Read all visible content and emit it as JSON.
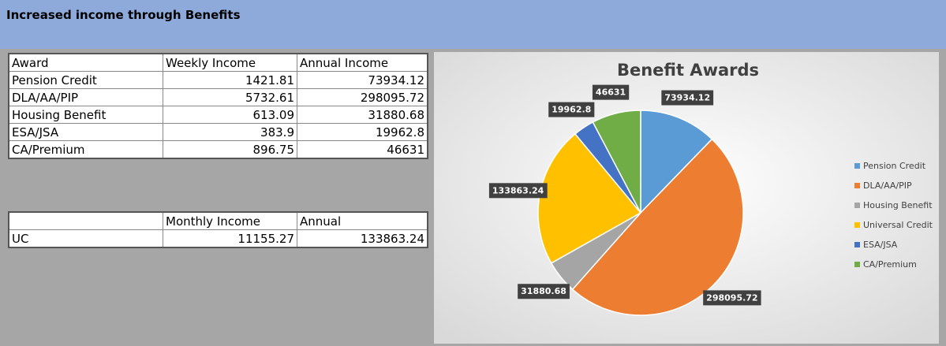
{
  "header": {
    "title": "Increased income through Benefits"
  },
  "table1": {
    "headers": [
      "Award",
      "Weekly Income",
      "Annual Income"
    ],
    "rows": [
      [
        "Pension Credit",
        1421.81,
        73934.12
      ],
      [
        "DLA/AA/PIP",
        5732.61,
        298095.72
      ],
      [
        "Housing Benefit",
        613.09,
        31880.68
      ],
      [
        "ESA/JSA",
        383.9,
        19962.8
      ],
      [
        "CA/Premium",
        896.75,
        46631
      ]
    ]
  },
  "table2": {
    "headers": [
      "",
      "Monthly Income",
      "Annual"
    ],
    "rows": [
      [
        "UC",
        11155.27,
        133863.24
      ]
    ]
  },
  "chart_data": {
    "type": "pie",
    "title": "Benefit Awards",
    "categories": [
      "Pension Credit",
      "DLA/AA/PIP",
      "Housing Benefit",
      "Universal Credit",
      "ESA/JSA",
      "CA/Premium"
    ],
    "values": [
      73934.12,
      298095.72,
      31880.68,
      133863.24,
      19962.8,
      46631
    ],
    "colors": [
      "#5b9bd5",
      "#ed7d31",
      "#a5a5a5",
      "#ffc000",
      "#4472c4",
      "#70ad47"
    ],
    "legend": "right"
  }
}
